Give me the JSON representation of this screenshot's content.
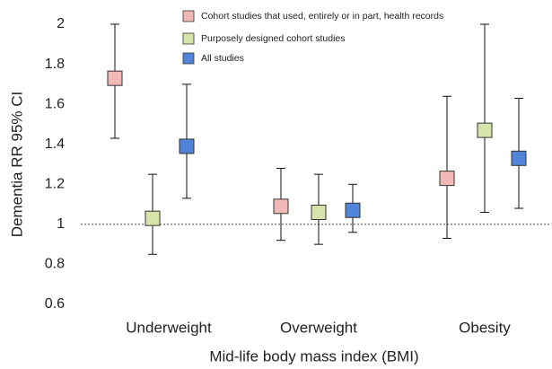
{
  "chart_data": {
    "type": "errorbar",
    "x_label": "Mid-life body mass index (BMI)",
    "y_label": "Dementia RR 95% CI",
    "categories": [
      "Underweight",
      "Overweight",
      "Obesity"
    ],
    "ylim": [
      0.6,
      2
    ],
    "yticks": [
      0.6,
      0.8,
      1,
      1.2,
      1.4,
      1.6,
      1.8,
      2
    ],
    "reference_line": 1,
    "series": [
      {
        "name": "Cohort studies that used, entirely or in part, health records",
        "color": "#f2b8b5",
        "values": [
          1.73,
          1.09,
          1.23
        ],
        "lower": [
          1.43,
          0.92,
          0.93
        ],
        "upper": [
          2,
          1.28,
          1.64
        ]
      },
      {
        "name": "Purposely designed cohort studies",
        "color": "#d7e4a9",
        "values": [
          1.03,
          1.06,
          1.47
        ],
        "lower": [
          0.85,
          0.9,
          1.06
        ],
        "upper": [
          1.25,
          1.25,
          2
        ]
      },
      {
        "name": "All studies",
        "color": "#4f84d8",
        "values": [
          1.39,
          1.07,
          1.33
        ],
        "lower": [
          1.13,
          0.96,
          1.08
        ],
        "upper": [
          1.7,
          1.2,
          1.63
        ]
      }
    ]
  }
}
